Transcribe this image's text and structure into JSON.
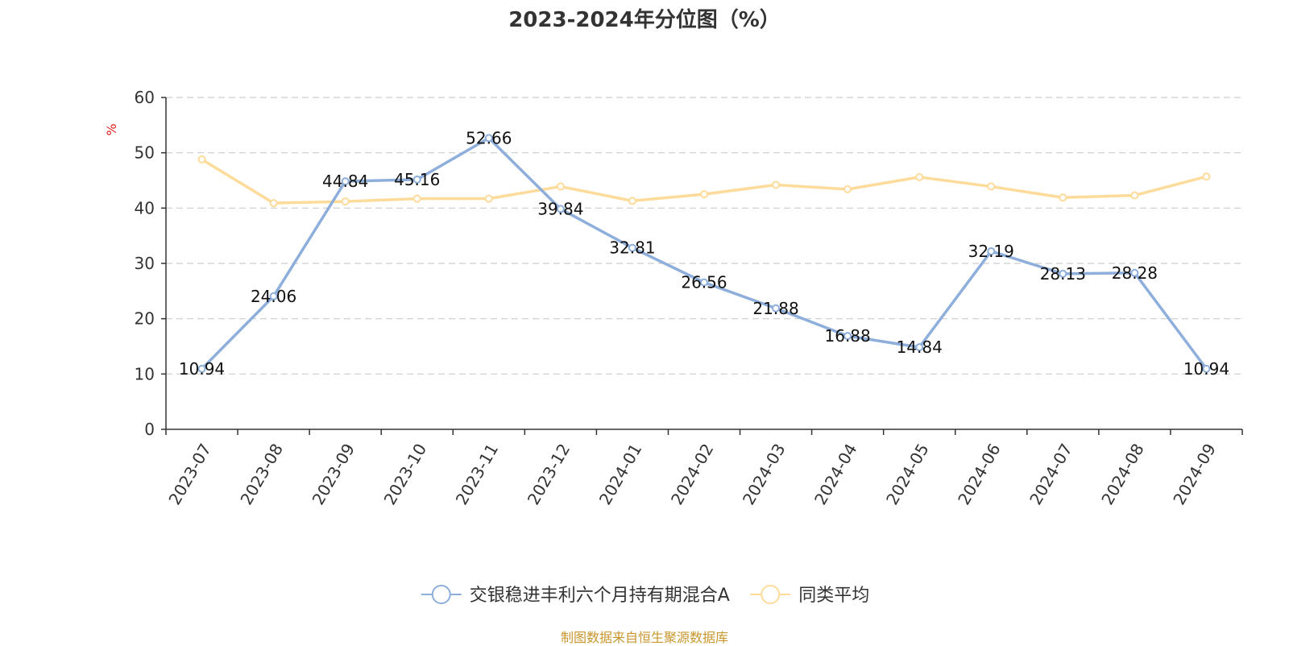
{
  "title": "2023-2024年分位图（%）",
  "footer": "制图数据来自恒生聚源数据库",
  "chart_data": {
    "type": "line",
    "title": "2023-2024年分位图（%）",
    "ylabel": "%",
    "ylim": [
      0,
      60
    ],
    "yticks": [
      0,
      10,
      20,
      30,
      40,
      50,
      60
    ],
    "grid": true,
    "legend_position": "bottom",
    "categories": [
      "2023-07",
      "2023-08",
      "2023-09",
      "2023-10",
      "2023-11",
      "2023-12",
      "2024-01",
      "2024-02",
      "2024-03",
      "2024-04",
      "2024-05",
      "2024-06",
      "2024-07",
      "2024-08",
      "2024-09"
    ],
    "series": [
      {
        "name": "交银稳进丰利六个月持有期混合A",
        "color": "#8eaedb",
        "show_labels": true,
        "values": [
          10.94,
          24.06,
          44.84,
          45.16,
          52.66,
          39.84,
          32.81,
          26.56,
          21.88,
          16.88,
          14.84,
          32.19,
          28.13,
          28.28,
          10.94
        ]
      },
      {
        "name": "同类平均",
        "color": "#fddb9a",
        "show_labels": false,
        "values": [
          48.8,
          40.9,
          41.2,
          41.7,
          41.7,
          43.9,
          41.3,
          42.5,
          44.2,
          43.4,
          45.6,
          43.9,
          41.9,
          42.3,
          45.7
        ]
      }
    ]
  }
}
